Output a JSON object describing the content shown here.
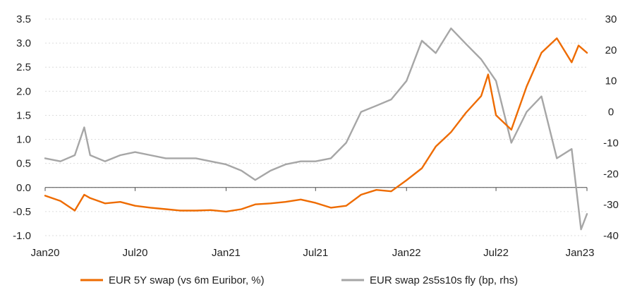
{
  "chart_data": {
    "type": "line",
    "title": "",
    "xlabel": "",
    "ylabel": "",
    "y2label": "",
    "x_ticks": [
      "Jan20",
      "Jul20",
      "Jan21",
      "Jul21",
      "Jan22",
      "Jul22",
      "Jan23"
    ],
    "ylim": [
      -1.0,
      3.5
    ],
    "y_ticks": [
      "3.5",
      "3.0",
      "2.5",
      "2.0",
      "1.5",
      "1.0",
      "0.5",
      "0.0",
      "-0.5",
      "-1.0"
    ],
    "y2lim": [
      -40,
      30
    ],
    "y2_ticks": [
      "30",
      "20",
      "10",
      "0",
      "-10",
      "-20",
      "-30",
      "-40"
    ],
    "grid": true,
    "legend_position": "bottom",
    "series": [
      {
        "name": "EUR 5Y swap (vs 6m Euribor, %)",
        "axis": "left",
        "color": "#ee6b00",
        "x": [
          "2020-01-01",
          "2020-02-01",
          "2020-03-01",
          "2020-03-20",
          "2020-04-01",
          "2020-05-01",
          "2020-06-01",
          "2020-07-01",
          "2020-08-01",
          "2020-09-01",
          "2020-10-01",
          "2020-11-01",
          "2020-12-01",
          "2021-01-01",
          "2021-02-01",
          "2021-03-01",
          "2021-04-01",
          "2021-05-01",
          "2021-06-01",
          "2021-07-01",
          "2021-08-01",
          "2021-09-01",
          "2021-10-01",
          "2021-11-01",
          "2021-12-01",
          "2022-01-01",
          "2022-02-01",
          "2022-03-01",
          "2022-04-01",
          "2022-05-01",
          "2022-06-01",
          "2022-06-15",
          "2022-07-01",
          "2022-08-01",
          "2022-09-01",
          "2022-10-01",
          "2022-11-01",
          "2022-12-01",
          "2022-12-15",
          "2023-01-01"
        ],
        "y": [
          -0.17,
          -0.28,
          -0.48,
          -0.15,
          -0.22,
          -0.33,
          -0.3,
          -0.38,
          -0.42,
          -0.45,
          -0.48,
          -0.48,
          -0.47,
          -0.5,
          -0.45,
          -0.35,
          -0.33,
          -0.3,
          -0.25,
          -0.32,
          -0.42,
          -0.38,
          -0.15,
          -0.05,
          -0.08,
          0.15,
          0.4,
          0.85,
          1.15,
          1.55,
          1.9,
          2.35,
          1.5,
          1.2,
          2.1,
          2.8,
          3.1,
          2.6,
          2.95,
          2.8
        ]
      },
      {
        "name": "EUR swap 2s5s10s fly (bp, rhs)",
        "axis": "right",
        "color": "#a6a6a6",
        "x": [
          "2020-01-01",
          "2020-02-01",
          "2020-03-01",
          "2020-03-20",
          "2020-04-01",
          "2020-05-01",
          "2020-06-01",
          "2020-07-01",
          "2020-08-01",
          "2020-09-01",
          "2020-10-01",
          "2020-11-01",
          "2020-12-01",
          "2021-01-01",
          "2021-02-01",
          "2021-03-01",
          "2021-04-01",
          "2021-05-01",
          "2021-06-01",
          "2021-07-01",
          "2021-08-01",
          "2021-09-01",
          "2021-10-01",
          "2021-11-01",
          "2021-12-01",
          "2022-01-01",
          "2022-02-01",
          "2022-03-01",
          "2022-04-01",
          "2022-05-01",
          "2022-06-01",
          "2022-07-01",
          "2022-08-01",
          "2022-09-01",
          "2022-10-01",
          "2022-11-01",
          "2022-12-01",
          "2022-12-20",
          "2023-01-01"
        ],
        "y": [
          -15,
          -16,
          -14,
          -5,
          -14,
          -16,
          -14,
          -13,
          -14,
          -15,
          -15,
          -15,
          -16,
          -17,
          -19,
          -22,
          -19,
          -17,
          -16,
          -16,
          -15,
          -10,
          0,
          2,
          4,
          10,
          23,
          19,
          27,
          22,
          17,
          10,
          -10,
          0,
          5,
          -15,
          -12,
          -38,
          -33
        ]
      }
    ]
  }
}
